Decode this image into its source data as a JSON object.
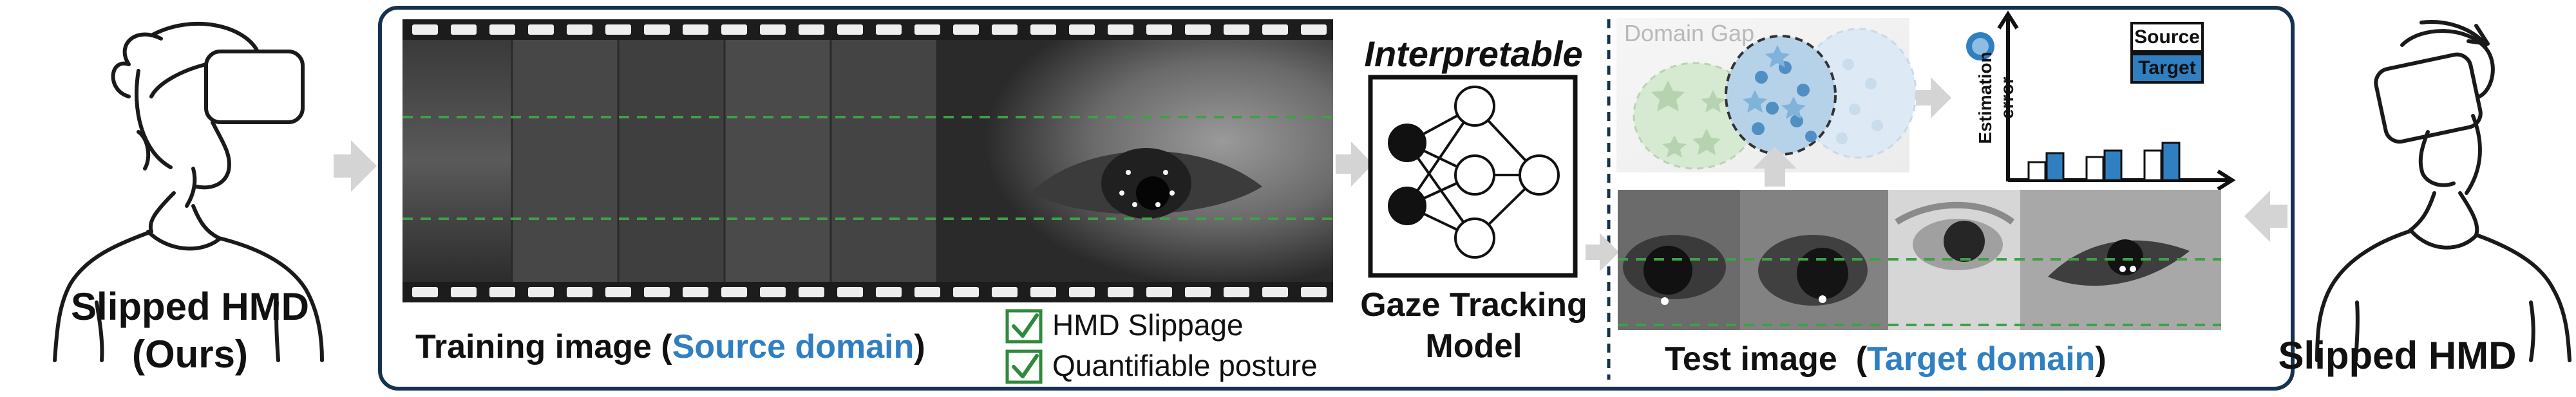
{
  "left_label": {
    "line1": "Slipped HMD",
    "line2": "(Ours)"
  },
  "right_label": "Slipped HMD",
  "training": {
    "caption_pre": "Training image (",
    "caption_domain": "Source domain",
    "caption_post": ")"
  },
  "checklist": [
    {
      "label": "HMD Slippage",
      "checked": true
    },
    {
      "label": "Quantifiable posture",
      "checked": true
    }
  ],
  "model": {
    "heading": "Interpretable",
    "line1": "Gaze Tracking",
    "line2": "Model"
  },
  "domain_gap": {
    "label": "Domain Gap"
  },
  "test": {
    "caption_pre": "Test image  (",
    "caption_domain": "Target domain",
    "caption_post": ")"
  },
  "error_chart": {
    "ylabel_line1": "Estimation",
    "ylabel_line2": "error",
    "legend": [
      {
        "name": "Source"
      },
      {
        "name": "Target"
      }
    ]
  },
  "colors": {
    "frame": "#16324e",
    "source_blue": "#2f7fc1",
    "check_green": "#2f8a3c",
    "guide_green": "#3fa045",
    "arrow_gray": "#d4d4d4",
    "source_cluster": "#d6ead2",
    "target_cluster": "#b6d2e8"
  }
}
